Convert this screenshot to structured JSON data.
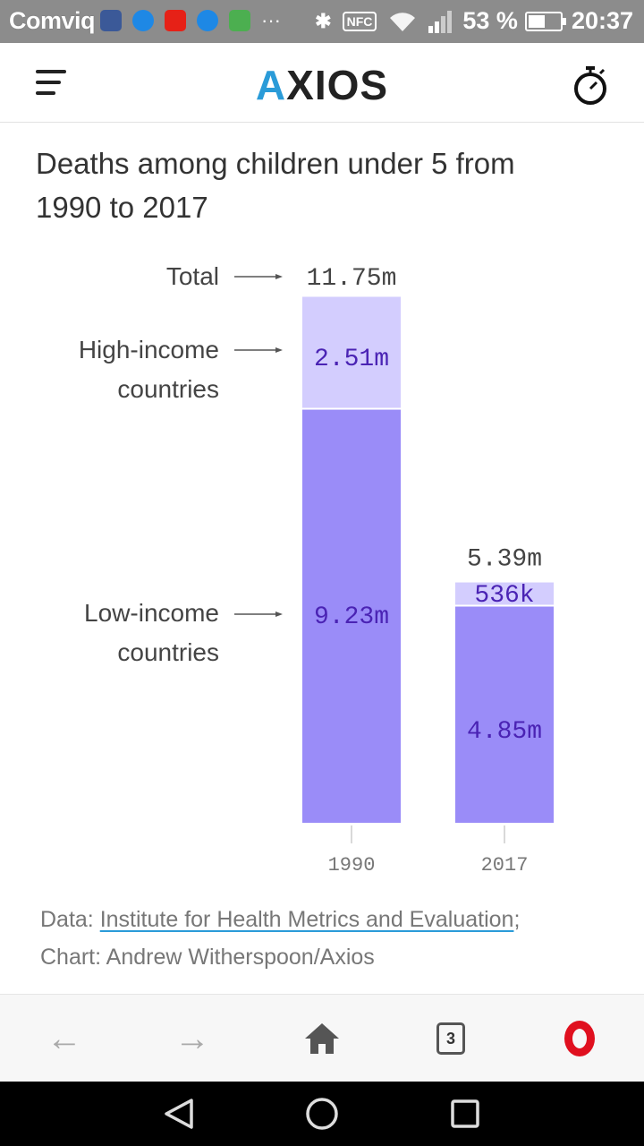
{
  "status_bar": {
    "carrier": "Comviq",
    "more": "···",
    "nfc": "NFC",
    "battery": "53 %",
    "time": "20:37"
  },
  "header": {
    "logo": "AXIOS"
  },
  "article": {
    "chart_title": "Deaths among children under 5 from 1990 to 2017",
    "source_prefix": "Data: ",
    "source_link": "Institute for Health Metrics and Evaluation",
    "source_suffix": ";",
    "credit": "Chart: Andrew Witherspoon/Axios"
  },
  "chart_data": {
    "type": "bar",
    "stacked": true,
    "categories": [
      "1990",
      "2017"
    ],
    "series": [
      {
        "name": "Low-income countries",
        "values": [
          9.23,
          4.85
        ],
        "labels": [
          "9.23m",
          "4.85m"
        ],
        "color": "#9a8cf8"
      },
      {
        "name": "High-income countries",
        "values": [
          2.51,
          0.536
        ],
        "labels": [
          "2.51m",
          "536k"
        ],
        "color": "#d3cdfe"
      }
    ],
    "totals": [
      11.75,
      5.39
    ],
    "total_labels": [
      "11.75m",
      "5.39m"
    ],
    "annotation_total": "Total",
    "annotation_high": [
      "High-income",
      "countries"
    ],
    "annotation_low": [
      "Low-income",
      "countries"
    ],
    "ylim": [
      0,
      11.75
    ],
    "label_color": "#4a23b4",
    "total_color": "#444444"
  },
  "toolbar": {
    "back": "←",
    "forward": "→",
    "home": "⌂",
    "tab_count": "3"
  }
}
